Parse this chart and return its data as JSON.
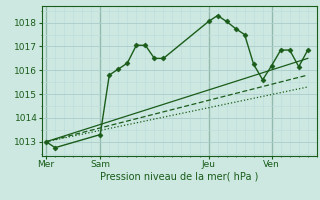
{
  "background_color": "#cce8e0",
  "grid_color_major": "#aacccc",
  "grid_color_minor": "#bbdddd",
  "line_color": "#1a5c1a",
  "title": "Pression niveau de la mer( hPa )",
  "ylabel_ticks": [
    1013,
    1014,
    1015,
    1016,
    1017,
    1018
  ],
  "day_labels": [
    "Mer",
    "Sam",
    "Jeu",
    "Ven"
  ],
  "day_positions": [
    0,
    6,
    18,
    25
  ],
  "ylim": [
    1012.4,
    1018.7
  ],
  "xlim": [
    -0.5,
    30
  ],
  "series1": {
    "x": [
      0,
      1,
      6,
      7,
      8,
      9,
      10,
      11,
      12,
      13,
      18,
      19,
      20,
      21,
      22,
      23,
      24,
      25,
      26,
      27,
      28,
      29
    ],
    "y": [
      1013.0,
      1012.75,
      1013.3,
      1015.8,
      1016.05,
      1016.3,
      1017.05,
      1017.05,
      1016.5,
      1016.5,
      1018.05,
      1018.3,
      1018.05,
      1017.75,
      1017.5,
      1016.25,
      1015.6,
      1016.2,
      1016.85,
      1016.85,
      1016.15,
      1016.85
    ]
  },
  "series2": {
    "x": [
      0,
      29
    ],
    "y": [
      1013.0,
      1016.5
    ]
  },
  "series3": {
    "x": [
      0,
      29
    ],
    "y": [
      1013.0,
      1015.8
    ]
  },
  "series4": {
    "x": [
      0,
      29
    ],
    "y": [
      1013.0,
      1015.3
    ]
  }
}
